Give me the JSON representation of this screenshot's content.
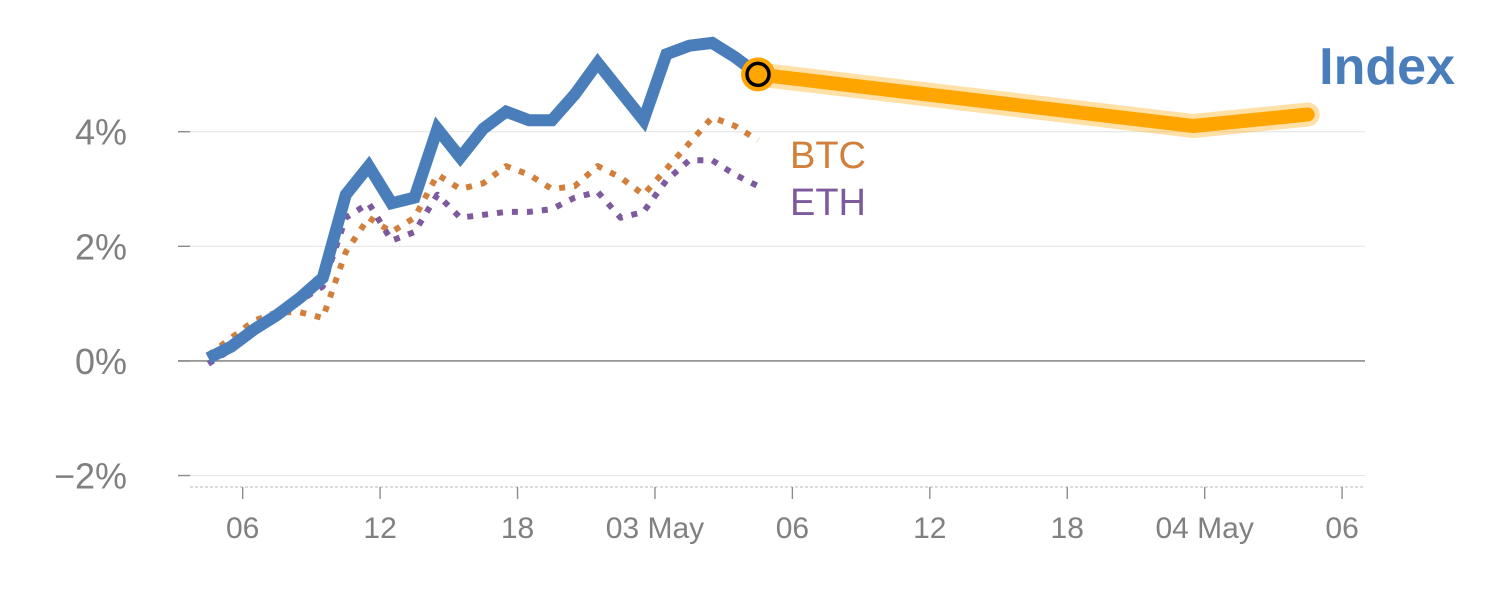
{
  "chart_data": {
    "type": "line",
    "title": "Index",
    "xlabel": "",
    "ylabel": "",
    "ylim": [
      -2.2,
      5.6
    ],
    "grid": true,
    "y_ticks": [
      {
        "value": -2,
        "label": "−2%"
      },
      {
        "value": 0,
        "label": "0%"
      },
      {
        "value": 2,
        "label": "2%"
      },
      {
        "value": 4,
        "label": "4%"
      }
    ],
    "x_ticks": [
      {
        "x": 1.5,
        "label": "06"
      },
      {
        "x": 7.5,
        "label": "12"
      },
      {
        "x": 13.5,
        "label": "18"
      },
      {
        "x": 19.5,
        "label": "03 May"
      },
      {
        "x": 25.5,
        "label": "06"
      },
      {
        "x": 31.5,
        "label": "12"
      },
      {
        "x": 37.5,
        "label": "18"
      },
      {
        "x": 43.5,
        "label": "04 May"
      },
      {
        "x": 49.5,
        "label": "06"
      }
    ],
    "xlim": [
      -0.8,
      50.5
    ],
    "series": [
      {
        "name": "Index",
        "color": "#4a7ebb",
        "style": "solid",
        "points": [
          [
            0,
            0.05
          ],
          [
            1,
            0.25
          ],
          [
            2,
            0.55
          ],
          [
            3,
            0.8
          ],
          [
            4,
            1.1
          ],
          [
            5,
            1.45
          ],
          [
            6,
            2.9
          ],
          [
            7,
            3.4
          ],
          [
            8,
            2.75
          ],
          [
            9,
            2.85
          ],
          [
            10,
            4.05
          ],
          [
            11,
            3.55
          ],
          [
            12,
            4.05
          ],
          [
            13,
            4.35
          ],
          [
            14,
            4.2
          ],
          [
            15,
            4.2
          ],
          [
            16,
            4.65
          ],
          [
            17,
            5.2
          ],
          [
            18,
            4.7
          ],
          [
            19,
            4.2
          ],
          [
            20,
            5.35
          ],
          [
            21,
            5.5
          ],
          [
            22,
            5.55
          ],
          [
            23,
            5.3
          ],
          [
            24,
            5.0
          ]
        ]
      },
      {
        "name": "BTC",
        "color": "#d17f3a",
        "style": "dotted",
        "points": [
          [
            0,
            0.1
          ],
          [
            1,
            0.4
          ],
          [
            2,
            0.7
          ],
          [
            3,
            0.85
          ],
          [
            4,
            0.85
          ],
          [
            5,
            0.75
          ],
          [
            6,
            1.9
          ],
          [
            7,
            2.5
          ],
          [
            8,
            2.25
          ],
          [
            9,
            2.5
          ],
          [
            10,
            3.25
          ],
          [
            11,
            3.0
          ],
          [
            12,
            3.1
          ],
          [
            13,
            3.4
          ],
          [
            14,
            3.25
          ],
          [
            15,
            3.0
          ],
          [
            16,
            3.05
          ],
          [
            17,
            3.4
          ],
          [
            18,
            3.2
          ],
          [
            19,
            2.9
          ],
          [
            20,
            3.35
          ],
          [
            21,
            3.8
          ],
          [
            22,
            4.25
          ],
          [
            23,
            4.1
          ],
          [
            24,
            3.85
          ]
        ]
      },
      {
        "name": "ETH",
        "color": "#7d5a9e",
        "style": "dotted",
        "points": [
          [
            0,
            -0.05
          ],
          [
            1,
            0.2
          ],
          [
            2,
            0.6
          ],
          [
            3,
            0.8
          ],
          [
            4,
            1.05
          ],
          [
            5,
            1.3
          ],
          [
            6,
            2.5
          ],
          [
            7,
            2.75
          ],
          [
            8,
            2.1
          ],
          [
            9,
            2.25
          ],
          [
            10,
            2.9
          ],
          [
            11,
            2.5
          ],
          [
            12,
            2.55
          ],
          [
            13,
            2.6
          ],
          [
            14,
            2.6
          ],
          [
            15,
            2.65
          ],
          [
            16,
            2.85
          ],
          [
            17,
            2.95
          ],
          [
            18,
            2.5
          ],
          [
            19,
            2.6
          ],
          [
            20,
            3.15
          ],
          [
            21,
            3.5
          ],
          [
            22,
            3.5
          ],
          [
            23,
            3.25
          ],
          [
            24,
            3.05
          ]
        ]
      },
      {
        "name": "",
        "color": "#ffa500",
        "style": "forecast",
        "points": [
          [
            24,
            5.0
          ],
          [
            43,
            4.1
          ],
          [
            48,
            4.3
          ]
        ]
      }
    ],
    "marker": {
      "x": 24,
      "y": 5.0,
      "fill": "#ffa500",
      "stroke": "#000000"
    }
  }
}
